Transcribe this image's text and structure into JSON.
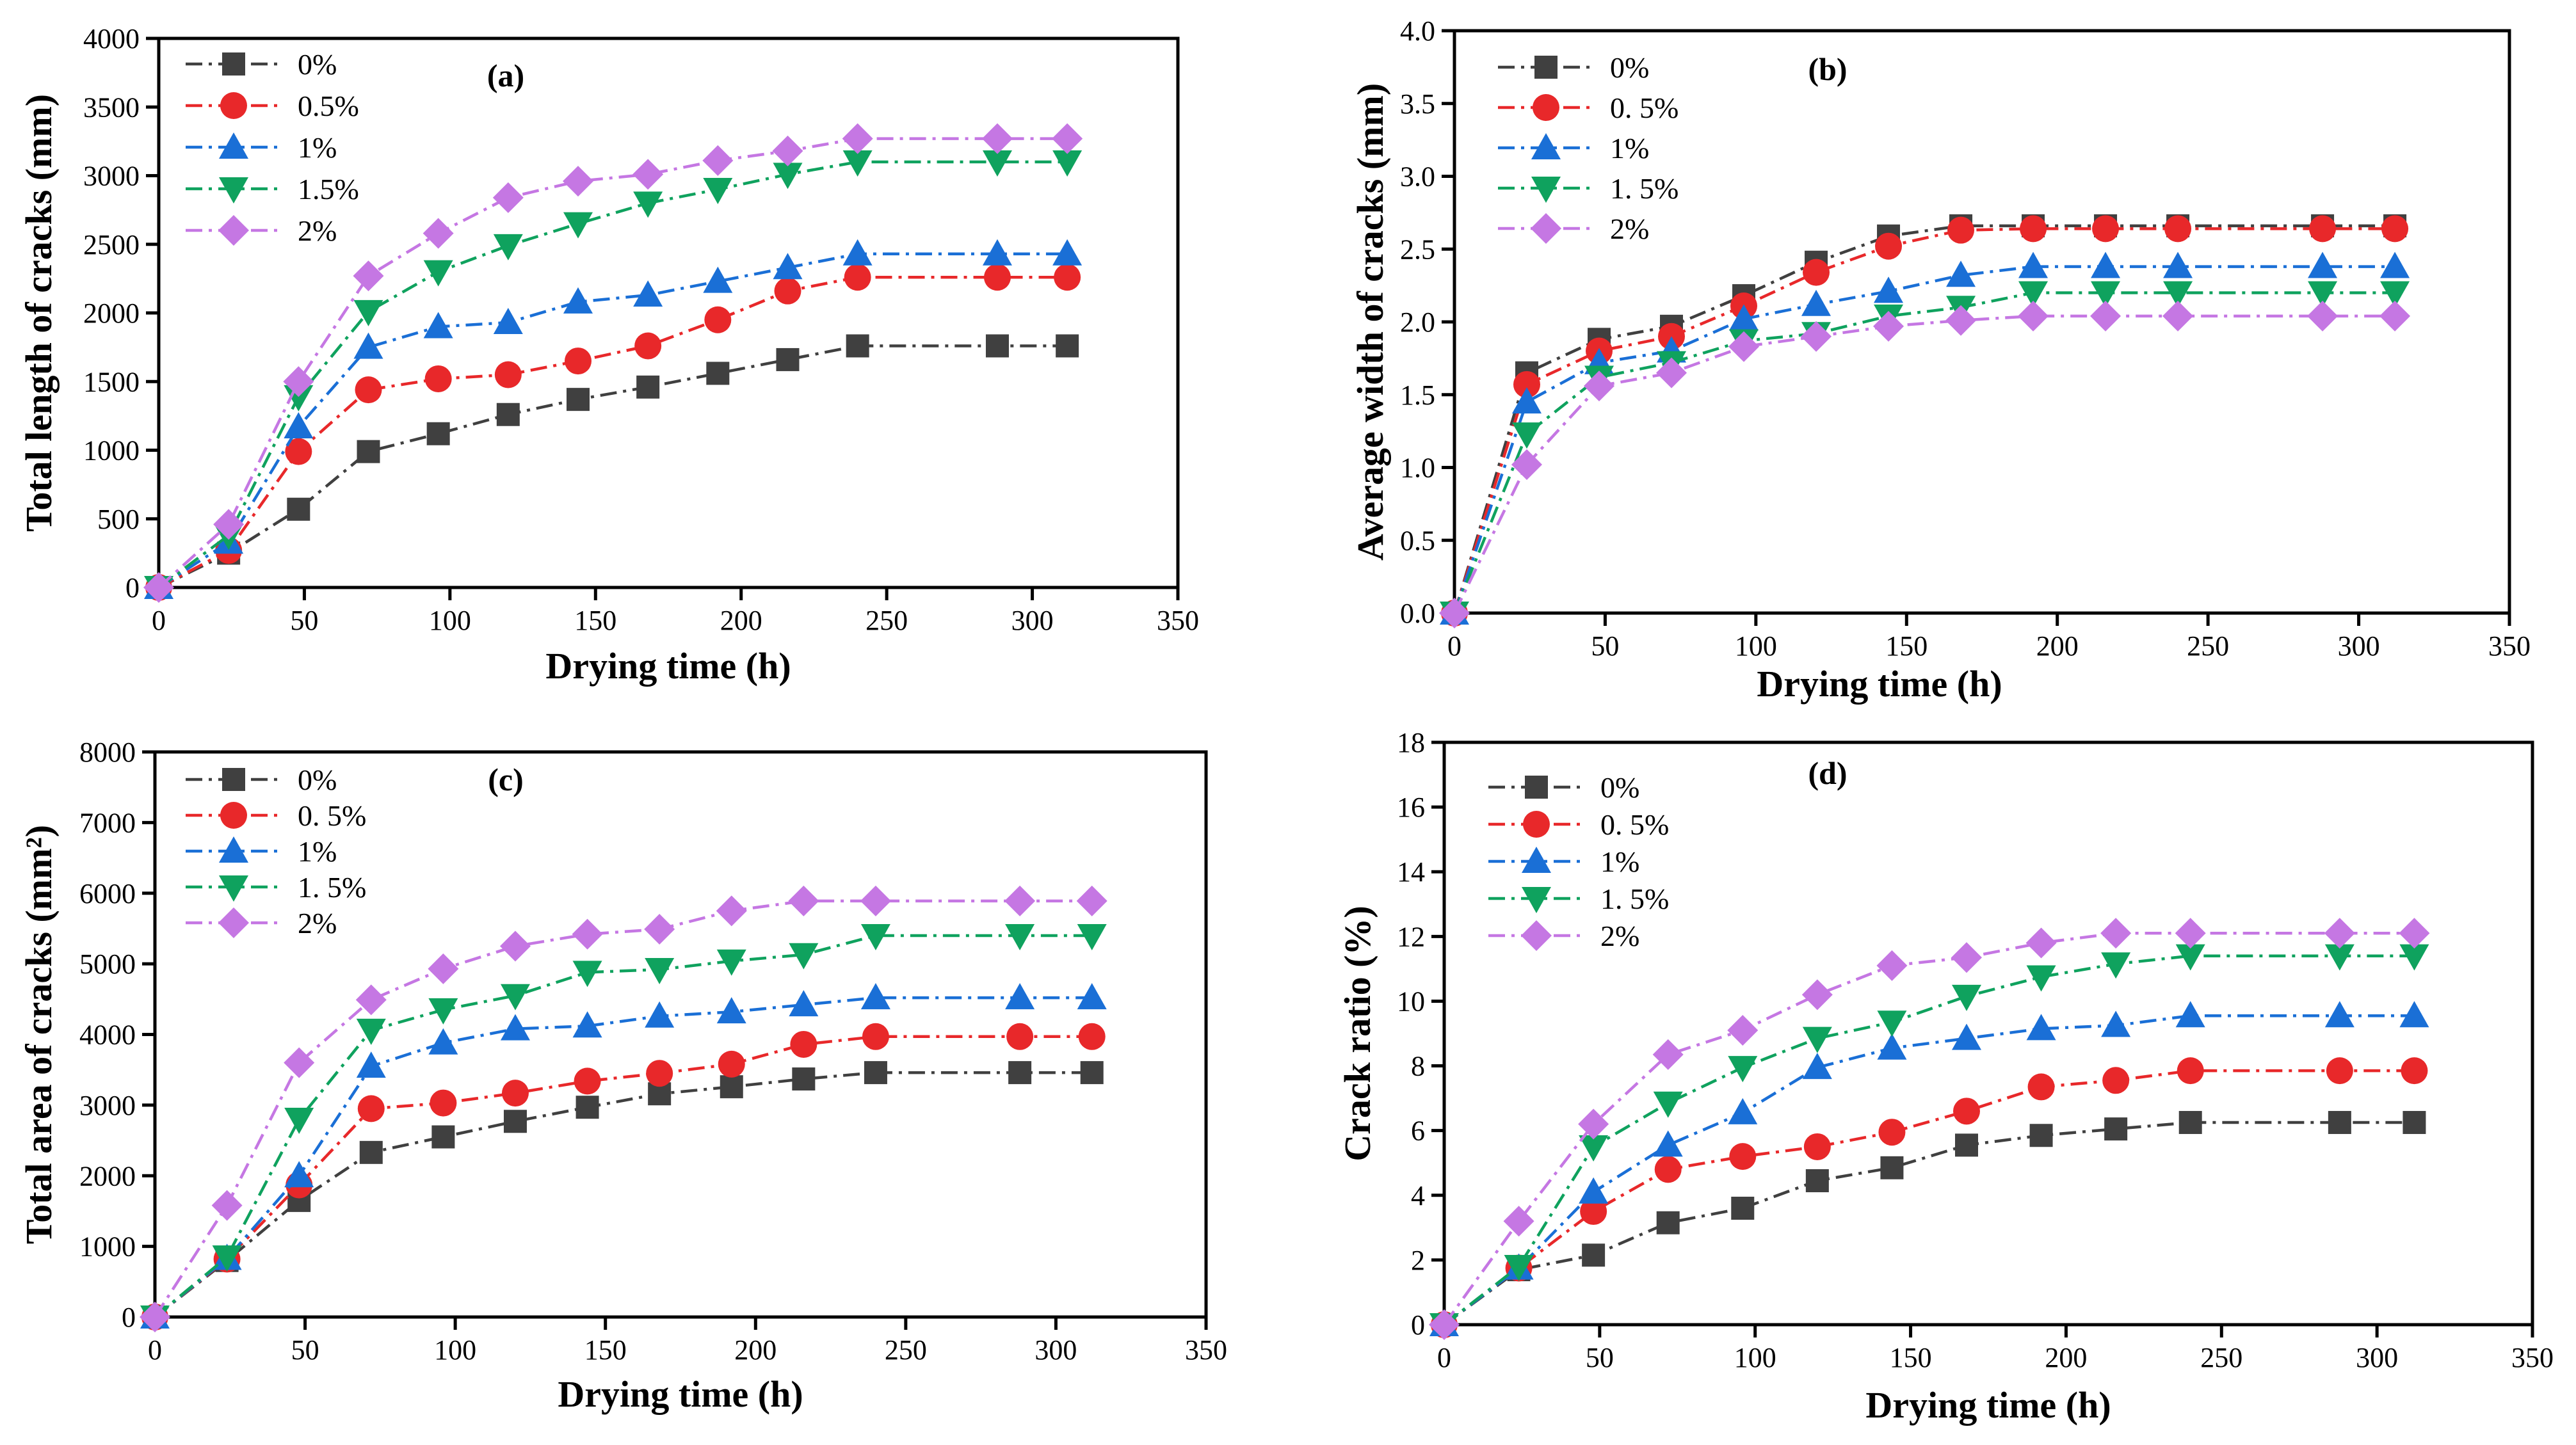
{
  "colors": {
    "0%": "#404040",
    "0.5%": "#e8282a",
    "1%": "#1a6fd6",
    "1.5%": "#0fa25e",
    "2%": "#c577e3"
  },
  "markers": {
    "0%": "square",
    "0.5%": "circle",
    "1%": "triangle-up",
    "1.5%": "triangle-down",
    "2%": "diamond"
  },
  "chart_data": [
    {
      "id": "a",
      "type": "line",
      "panel_label": "(a)",
      "xlabel": "Drying time (h)",
      "ylabel": "Total length of cracks (mm)",
      "xlim": [
        0,
        350
      ],
      "ylim": [
        0,
        4000
      ],
      "xticks": [
        0,
        50,
        100,
        150,
        200,
        250,
        300,
        350
      ],
      "yticks": [
        0,
        500,
        1000,
        1500,
        2000,
        2500,
        3000,
        3500,
        4000
      ],
      "x": [
        0,
        24,
        48,
        72,
        96,
        120,
        144,
        168,
        192,
        216,
        240,
        288,
        312
      ],
      "legend_position": "top-left",
      "series": [
        {
          "name": "0%",
          "values": [
            0,
            250,
            570,
            990,
            1120,
            1260,
            1370,
            1460,
            1560,
            1660,
            1760,
            1760,
            1760
          ]
        },
        {
          "name": "0.5%",
          "values": [
            0,
            270,
            990,
            1440,
            1520,
            1550,
            1650,
            1760,
            1950,
            2160,
            2260,
            2260,
            2260
          ]
        },
        {
          "name": "1%",
          "values": [
            0,
            330,
            1170,
            1750,
            1900,
            1930,
            2080,
            2130,
            2230,
            2330,
            2430,
            2430,
            2430
          ]
        },
        {
          "name": "1.5%",
          "values": [
            0,
            380,
            1390,
            2010,
            2300,
            2490,
            2650,
            2800,
            2900,
            3010,
            3100,
            3100,
            3100
          ]
        },
        {
          "name": "2%",
          "values": [
            0,
            460,
            1500,
            2270,
            2580,
            2840,
            2960,
            3010,
            3110,
            3180,
            3270,
            3270,
            3270
          ]
        }
      ]
    },
    {
      "id": "b",
      "type": "line",
      "panel_label": "(b)",
      "xlabel": "Drying time (h)",
      "ylabel": "Average width of cracks (mm)",
      "xlim": [
        0,
        350
      ],
      "ylim": [
        0,
        4.0
      ],
      "xticks": [
        0,
        50,
        100,
        150,
        200,
        250,
        300,
        350
      ],
      "yticks": [
        0,
        0.5,
        1.0,
        1.5,
        2.0,
        2.5,
        3.0,
        3.5,
        4.0
      ],
      "ytick_labels": [
        "0.0",
        "0.5",
        "1.0",
        "1.5",
        "2.0",
        "2.5",
        "3.0",
        "3.5",
        "4.0"
      ],
      "x": [
        0,
        24,
        48,
        72,
        96,
        120,
        144,
        168,
        192,
        216,
        240,
        288,
        312
      ],
      "legend_position": "top-left",
      "legend_labels": [
        "0%",
        "0. 5%",
        "1%",
        "1. 5%",
        "2%"
      ],
      "series": [
        {
          "name": "0%",
          "values": [
            0,
            1.65,
            1.88,
            1.97,
            2.18,
            2.41,
            2.59,
            2.66,
            2.66,
            2.66,
            2.66,
            2.66,
            2.66
          ]
        },
        {
          "name": "0.5%",
          "values": [
            0,
            1.57,
            1.8,
            1.9,
            2.11,
            2.34,
            2.52,
            2.63,
            2.64,
            2.64,
            2.64,
            2.64,
            2.64
          ]
        },
        {
          "name": "1%",
          "values": [
            0,
            1.45,
            1.72,
            1.8,
            2.02,
            2.12,
            2.21,
            2.32,
            2.38,
            2.38,
            2.38,
            2.38,
            2.38
          ]
        },
        {
          "name": "1.5%",
          "values": [
            0,
            1.23,
            1.62,
            1.72,
            1.87,
            1.92,
            2.04,
            2.1,
            2.2,
            2.2,
            2.2,
            2.2,
            2.2
          ]
        },
        {
          "name": "2%",
          "values": [
            0,
            1.02,
            1.56,
            1.65,
            1.83,
            1.9,
            1.97,
            2.01,
            2.04,
            2.04,
            2.04,
            2.04,
            2.04
          ]
        }
      ]
    },
    {
      "id": "c",
      "type": "line",
      "panel_label": "(c)",
      "xlabel": "Drying time (h)",
      "ylabel": "Total area of cracks (mm²)",
      "xlim": [
        0,
        350
      ],
      "ylim": [
        0,
        8000
      ],
      "xticks": [
        0,
        50,
        100,
        150,
        200,
        250,
        300,
        350
      ],
      "yticks": [
        0,
        1000,
        2000,
        3000,
        4000,
        5000,
        6000,
        7000,
        8000
      ],
      "x": [
        0,
        24,
        48,
        72,
        96,
        120,
        144,
        168,
        192,
        216,
        240,
        288,
        312
      ],
      "legend_position": "top-left",
      "legend_labels": [
        "0%",
        "0. 5%",
        "1%",
        "1. 5%",
        "2%"
      ],
      "series": [
        {
          "name": "0%",
          "values": [
            0,
            800,
            1650,
            2330,
            2550,
            2770,
            2970,
            3160,
            3260,
            3370,
            3460,
            3460,
            3460
          ]
        },
        {
          "name": "0.5%",
          "values": [
            0,
            820,
            1870,
            2950,
            3030,
            3170,
            3340,
            3450,
            3580,
            3860,
            3970,
            3970,
            3970
          ]
        },
        {
          "name": "1%",
          "values": [
            0,
            830,
            2000,
            3550,
            3880,
            4080,
            4120,
            4260,
            4320,
            4420,
            4520,
            4520,
            4520
          ]
        },
        {
          "name": "1.5%",
          "values": [
            0,
            850,
            2800,
            4060,
            4350,
            4550,
            4880,
            4920,
            5040,
            5130,
            5400,
            5400,
            5400
          ]
        },
        {
          "name": "2%",
          "values": [
            0,
            1580,
            3600,
            4490,
            4930,
            5250,
            5420,
            5490,
            5750,
            5890,
            5890,
            5890,
            5890
          ]
        }
      ]
    },
    {
      "id": "d",
      "type": "line",
      "panel_label": "(d)",
      "xlabel": "Drying time (h)",
      "ylabel": "Crack ratio (%)",
      "xlim": [
        0,
        350
      ],
      "ylim": [
        0,
        18
      ],
      "xticks": [
        0,
        50,
        100,
        150,
        200,
        250,
        300,
        350
      ],
      "yticks": [
        0,
        2,
        4,
        6,
        8,
        10,
        12,
        14,
        16,
        18
      ],
      "x": [
        0,
        24,
        48,
        72,
        96,
        120,
        144,
        168,
        192,
        216,
        240,
        288,
        312
      ],
      "legend_position": "top-left",
      "legend_labels": [
        "0%",
        "0. 5%",
        "1%",
        "1. 5%",
        "2%"
      ],
      "series": [
        {
          "name": "0%",
          "values": [
            0,
            1.7,
            2.15,
            3.15,
            3.6,
            4.45,
            4.85,
            5.55,
            5.85,
            6.05,
            6.25,
            6.25,
            6.25
          ]
        },
        {
          "name": "0.5%",
          "values": [
            0,
            1.75,
            3.5,
            4.8,
            5.2,
            5.5,
            5.95,
            6.6,
            7.35,
            7.55,
            7.85,
            7.85,
            7.85
          ]
        },
        {
          "name": "1%",
          "values": [
            0,
            1.75,
            4.1,
            5.55,
            6.55,
            7.95,
            8.55,
            8.85,
            9.15,
            9.25,
            9.55,
            9.55,
            9.55
          ]
        },
        {
          "name": "1.5%",
          "values": [
            0,
            1.8,
            5.5,
            6.85,
            7.95,
            8.85,
            9.35,
            10.15,
            10.75,
            11.15,
            11.4,
            11.4,
            11.4
          ]
        },
        {
          "name": "2%",
          "values": [
            0,
            3.2,
            6.2,
            8.35,
            9.1,
            10.2,
            11.1,
            11.35,
            11.8,
            12.1,
            12.1,
            12.1,
            12.1
          ]
        }
      ]
    }
  ]
}
